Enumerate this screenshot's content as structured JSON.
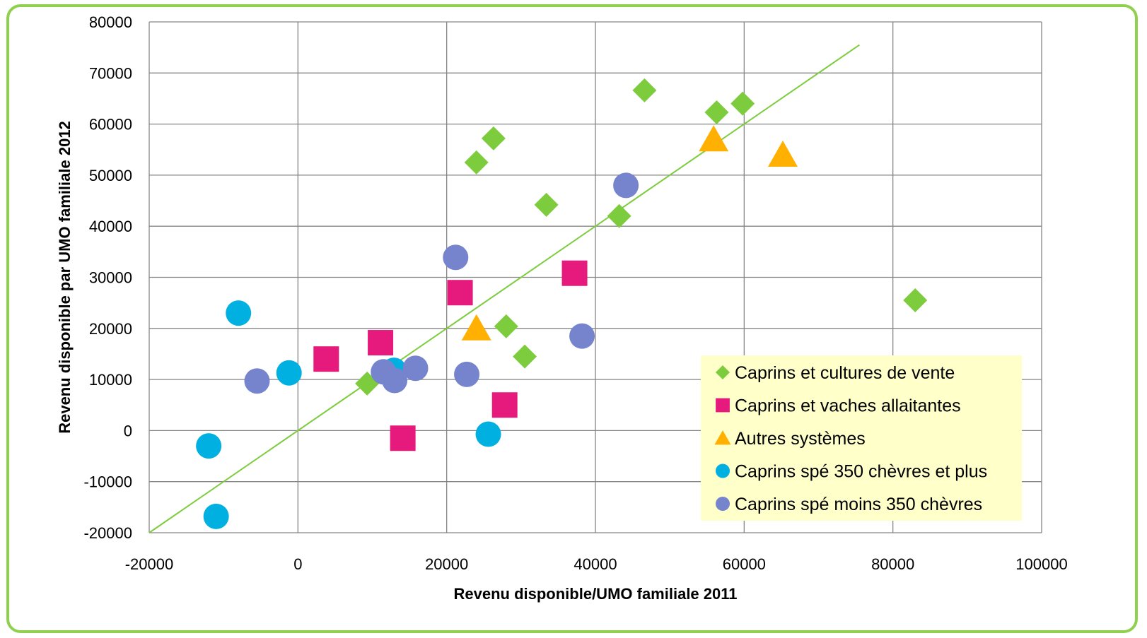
{
  "chart_data": {
    "type": "scatter",
    "title": "",
    "xlabel": "Revenu disponible/UMO familiale 2011",
    "ylabel": "Revenu disponible par UMO familiale 2012",
    "xlim": [
      -20000,
      100000
    ],
    "ylim": [
      -20000,
      80000
    ],
    "x_ticks": [
      -20000,
      0,
      20000,
      40000,
      60000,
      80000,
      100000
    ],
    "y_ticks": [
      -20000,
      -10000,
      0,
      10000,
      20000,
      30000,
      40000,
      50000,
      60000,
      70000,
      80000
    ],
    "x_tick_labels": [
      "-20000",
      "0",
      "20000",
      "40000",
      "60000",
      "80000",
      "100000"
    ],
    "y_tick_labels": [
      "-20000",
      "-10000",
      "0",
      "10000",
      "20000",
      "30000",
      "40000",
      "50000",
      "60000",
      "70000",
      "80000"
    ],
    "grid": true,
    "legend_position": "bottom-right",
    "reference_line": {
      "color": "#7dcc3d",
      "from": [
        -20000,
        -20000
      ],
      "to": [
        75500,
        75500
      ]
    },
    "series": [
      {
        "name": "Caprins et cultures de vente",
        "marker": "diamond",
        "color": "#7dcc3d",
        "points": [
          [
            9300,
            9200
          ],
          [
            24000,
            52500
          ],
          [
            26300,
            57200
          ],
          [
            28000,
            20400
          ],
          [
            30500,
            14500
          ],
          [
            33400,
            44200
          ],
          [
            43200,
            42000
          ],
          [
            46600,
            66600
          ],
          [
            56300,
            62300
          ],
          [
            59800,
            64000
          ],
          [
            83000,
            25500
          ]
        ]
      },
      {
        "name": "Caprins et vaches allaitantes",
        "marker": "square",
        "color": "#e6197c",
        "points": [
          [
            3800,
            14000
          ],
          [
            11100,
            17200
          ],
          [
            14100,
            -1500
          ],
          [
            21800,
            27000
          ],
          [
            27800,
            5000
          ],
          [
            37200,
            30800
          ]
        ]
      },
      {
        "name": "Autres systèmes",
        "marker": "triangle",
        "color": "#ffb000",
        "points": [
          [
            24000,
            20000
          ],
          [
            55900,
            57000
          ],
          [
            65200,
            54000
          ]
        ]
      },
      {
        "name": "Caprins spé 350 chèvres et plus",
        "marker": "circle",
        "color": "#00b0e0",
        "points": [
          [
            -12000,
            -3000
          ],
          [
            -11000,
            -16800
          ],
          [
            -8000,
            23000
          ],
          [
            -1200,
            11300
          ],
          [
            12900,
            11800
          ],
          [
            25600,
            -700
          ]
        ]
      },
      {
        "name": "Caprins spé moins 350 chèvres",
        "marker": "circle",
        "color": "#7584cc",
        "points": [
          [
            -5500,
            9700
          ],
          [
            11500,
            11500
          ],
          [
            13000,
            9800
          ],
          [
            15800,
            12200
          ],
          [
            21200,
            33900
          ],
          [
            22700,
            11000
          ],
          [
            38200,
            18500
          ],
          [
            44100,
            48000
          ]
        ]
      }
    ]
  }
}
